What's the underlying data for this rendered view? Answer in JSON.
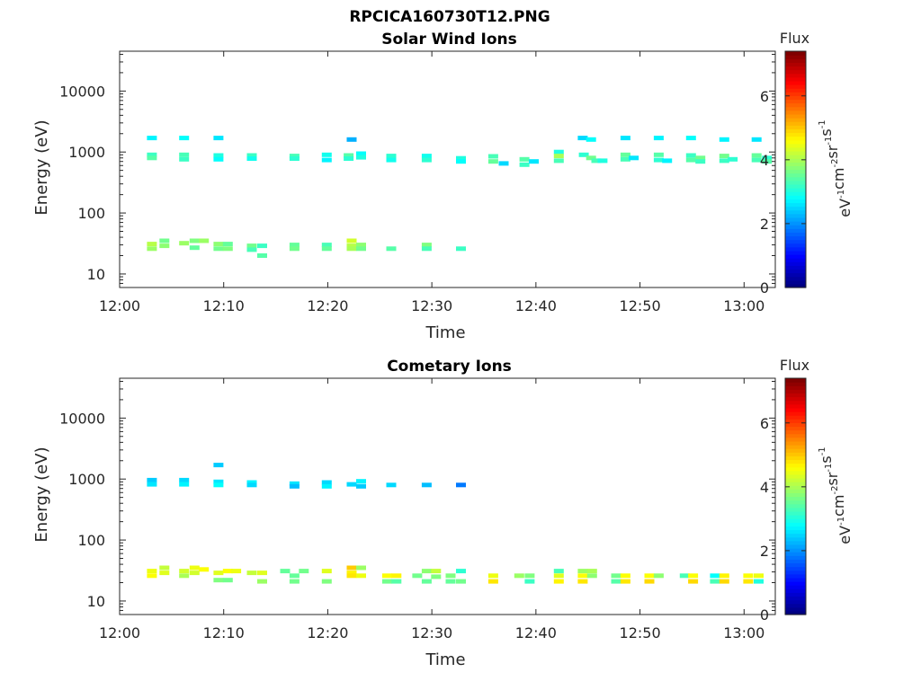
{
  "figure_title": "RPCICA160730T12.PNG",
  "chart_data": [
    {
      "type": "heatmap",
      "title": "Solar Wind Ions",
      "xlabel": "Time",
      "ylabel": "Energy (eV)",
      "x_ticks": [
        "12:00",
        "12:10",
        "12:20",
        "12:30",
        "12:40",
        "12:50",
        "13:00"
      ],
      "x_range_minutes": [
        0,
        63
      ],
      "y_scale": "log",
      "y_ticks": [
        "10",
        "100",
        "1000",
        "10000"
      ],
      "y_range": [
        6,
        45000
      ],
      "colorbar": {
        "title": "Flux",
        "unit": "eV-1cm-2sr-1s-1",
        "ticks": [
          "0",
          "2",
          "4",
          "6"
        ],
        "range": [
          0,
          7.4
        ],
        "colormap": "jet"
      },
      "pixels": [
        {
          "t": 3.1,
          "e": 1700,
          "v": 2.7
        },
        {
          "t": 6.2,
          "e": 1700,
          "v": 2.8
        },
        {
          "t": 9.5,
          "e": 1700,
          "v": 2.6
        },
        {
          "t": 22.3,
          "e": 1600,
          "v": 2.2
        },
        {
          "t": 3.1,
          "e": 900,
          "v": 3.2
        },
        {
          "t": 3.1,
          "e": 800,
          "v": 3.4
        },
        {
          "t": 6.2,
          "e": 900,
          "v": 3.3
        },
        {
          "t": 6.2,
          "e": 760,
          "v": 3.2
        },
        {
          "t": 9.5,
          "e": 880,
          "v": 3.0
        },
        {
          "t": 9.5,
          "e": 760,
          "v": 2.8
        },
        {
          "t": 12.7,
          "e": 880,
          "v": 3.2
        },
        {
          "t": 12.7,
          "e": 780,
          "v": 2.9
        },
        {
          "t": 16.8,
          "e": 860,
          "v": 3.3
        },
        {
          "t": 16.8,
          "e": 780,
          "v": 3.1
        },
        {
          "t": 19.9,
          "e": 900,
          "v": 2.9
        },
        {
          "t": 19.9,
          "e": 740,
          "v": 2.7
        },
        {
          "t": 22.0,
          "e": 880,
          "v": 3.4
        },
        {
          "t": 22.0,
          "e": 780,
          "v": 3.1
        },
        {
          "t": 23.2,
          "e": 940,
          "v": 2.8
        },
        {
          "t": 23.2,
          "e": 820,
          "v": 3.0
        },
        {
          "t": 26.1,
          "e": 860,
          "v": 3.1
        },
        {
          "t": 26.1,
          "e": 740,
          "v": 2.9
        },
        {
          "t": 29.5,
          "e": 860,
          "v": 2.9
        },
        {
          "t": 29.5,
          "e": 740,
          "v": 3.1
        },
        {
          "t": 32.8,
          "e": 790,
          "v": 3.0
        },
        {
          "t": 32.8,
          "e": 700,
          "v": 2.8
        },
        {
          "t": 35.9,
          "e": 850,
          "v": 3.3
        },
        {
          "t": 35.9,
          "e": 700,
          "v": 3.5
        },
        {
          "t": 36.9,
          "e": 650,
          "v": 2.5
        },
        {
          "t": 38.9,
          "e": 760,
          "v": 3.4
        },
        {
          "t": 38.9,
          "e": 620,
          "v": 3.2
        },
        {
          "t": 39.8,
          "e": 700,
          "v": 2.6
        },
        {
          "t": 42.2,
          "e": 1000,
          "v": 3.0
        },
        {
          "t": 42.2,
          "e": 860,
          "v": 4.0
        },
        {
          "t": 42.2,
          "e": 720,
          "v": 3.3
        },
        {
          "t": 44.5,
          "e": 1700,
          "v": 2.5
        },
        {
          "t": 45.3,
          "e": 1600,
          "v": 2.8
        },
        {
          "t": 44.6,
          "e": 900,
          "v": 3.1
        },
        {
          "t": 45.3,
          "e": 800,
          "v": 3.6
        },
        {
          "t": 45.8,
          "e": 720,
          "v": 3.3
        },
        {
          "t": 46.4,
          "e": 720,
          "v": 3.0
        },
        {
          "t": 48.6,
          "e": 1700,
          "v": 2.6
        },
        {
          "t": 48.6,
          "e": 900,
          "v": 3.5
        },
        {
          "t": 48.6,
          "e": 760,
          "v": 3.3
        },
        {
          "t": 49.4,
          "e": 800,
          "v": 2.6
        },
        {
          "t": 51.8,
          "e": 1700,
          "v": 2.7
        },
        {
          "t": 51.8,
          "e": 900,
          "v": 3.4
        },
        {
          "t": 51.8,
          "e": 740,
          "v": 3.1
        },
        {
          "t": 52.6,
          "e": 720,
          "v": 2.7
        },
        {
          "t": 54.9,
          "e": 1700,
          "v": 2.8
        },
        {
          "t": 54.9,
          "e": 880,
          "v": 3.2
        },
        {
          "t": 54.9,
          "e": 740,
          "v": 3.4
        },
        {
          "t": 55.8,
          "e": 800,
          "v": 3.6
        },
        {
          "t": 55.8,
          "e": 700,
          "v": 3.2
        },
        {
          "t": 58.1,
          "e": 1600,
          "v": 2.7
        },
        {
          "t": 58.1,
          "e": 860,
          "v": 3.6
        },
        {
          "t": 58.1,
          "e": 720,
          "v": 3.2
        },
        {
          "t": 58.9,
          "e": 760,
          "v": 3.1
        },
        {
          "t": 61.2,
          "e": 1600,
          "v": 2.6
        },
        {
          "t": 61.2,
          "e": 880,
          "v": 3.5
        },
        {
          "t": 61.2,
          "e": 740,
          "v": 3.3
        },
        {
          "t": 62.2,
          "e": 800,
          "v": 3.1
        },
        {
          "t": 62.2,
          "e": 700,
          "v": 3.4
        },
        {
          "t": 3.1,
          "e": 31,
          "v": 4.1
        },
        {
          "t": 3.1,
          "e": 26,
          "v": 3.9
        },
        {
          "t": 4.3,
          "e": 35,
          "v": 3.6
        },
        {
          "t": 4.3,
          "e": 29,
          "v": 3.8
        },
        {
          "t": 6.2,
          "e": 32,
          "v": 3.9
        },
        {
          "t": 7.2,
          "e": 35,
          "v": 3.7
        },
        {
          "t": 7.2,
          "e": 27,
          "v": 3.5
        },
        {
          "t": 8.1,
          "e": 35,
          "v": 3.9
        },
        {
          "t": 9.5,
          "e": 31,
          "v": 3.8
        },
        {
          "t": 9.5,
          "e": 26,
          "v": 3.6
        },
        {
          "t": 10.4,
          "e": 31,
          "v": 3.5
        },
        {
          "t": 10.4,
          "e": 26,
          "v": 3.7
        },
        {
          "t": 12.7,
          "e": 29,
          "v": 3.6
        },
        {
          "t": 12.7,
          "e": 25,
          "v": 3.3
        },
        {
          "t": 13.7,
          "e": 29,
          "v": 3.2
        },
        {
          "t": 13.7,
          "e": 20,
          "v": 3.4
        },
        {
          "t": 16.8,
          "e": 30,
          "v": 3.5
        },
        {
          "t": 16.8,
          "e": 26,
          "v": 3.6
        },
        {
          "t": 19.9,
          "e": 30,
          "v": 3.3
        },
        {
          "t": 19.9,
          "e": 26,
          "v": 3.5
        },
        {
          "t": 22.3,
          "e": 35,
          "v": 4.3
        },
        {
          "t": 22.3,
          "e": 29,
          "v": 4.1
        },
        {
          "t": 22.3,
          "e": 26,
          "v": 4.0
        },
        {
          "t": 23.2,
          "e": 30,
          "v": 3.8
        },
        {
          "t": 23.2,
          "e": 26,
          "v": 3.6
        },
        {
          "t": 26.1,
          "e": 26,
          "v": 3.4
        },
        {
          "t": 29.5,
          "e": 30,
          "v": 3.7
        },
        {
          "t": 29.5,
          "e": 26,
          "v": 3.3
        },
        {
          "t": 32.8,
          "e": 26,
          "v": 3.2
        }
      ]
    },
    {
      "type": "heatmap",
      "title": "Cometary Ions",
      "xlabel": "Time",
      "ylabel": "Energy (eV)",
      "x_ticks": [
        "12:00",
        "12:10",
        "12:20",
        "12:30",
        "12:40",
        "12:50",
        "13:00"
      ],
      "x_range_minutes": [
        0,
        63
      ],
      "y_scale": "log",
      "y_ticks": [
        "10",
        "100",
        "1000",
        "10000"
      ],
      "y_range": [
        6,
        45000
      ],
      "colorbar": {
        "title": "Flux",
        "unit": "eV-1cm-2sr-1s-1",
        "ticks": [
          "0",
          "2",
          "4",
          "6"
        ],
        "range": [
          0,
          7.4
        ],
        "colormap": "jet"
      },
      "pixels": [
        {
          "t": 9.5,
          "e": 1700,
          "v": 2.4
        },
        {
          "t": 3.1,
          "e": 960,
          "v": 2.4
        },
        {
          "t": 3.1,
          "e": 820,
          "v": 2.6
        },
        {
          "t": 6.2,
          "e": 960,
          "v": 2.5
        },
        {
          "t": 6.2,
          "e": 820,
          "v": 2.7
        },
        {
          "t": 9.5,
          "e": 900,
          "v": 2.6
        },
        {
          "t": 9.5,
          "e": 800,
          "v": 2.8
        },
        {
          "t": 12.7,
          "e": 880,
          "v": 2.7
        },
        {
          "t": 12.7,
          "e": 800,
          "v": 2.5
        },
        {
          "t": 16.8,
          "e": 840,
          "v": 2.6
        },
        {
          "t": 16.8,
          "e": 760,
          "v": 2.3
        },
        {
          "t": 19.9,
          "e": 880,
          "v": 2.5
        },
        {
          "t": 19.9,
          "e": 760,
          "v": 2.7
        },
        {
          "t": 22.3,
          "e": 820,
          "v": 2.5
        },
        {
          "t": 23.2,
          "e": 920,
          "v": 2.7
        },
        {
          "t": 23.2,
          "e": 760,
          "v": 2.4
        },
        {
          "t": 26.1,
          "e": 800,
          "v": 2.5
        },
        {
          "t": 29.5,
          "e": 800,
          "v": 2.3
        },
        {
          "t": 32.8,
          "e": 800,
          "v": 1.8
        },
        {
          "t": 3.1,
          "e": 31,
          "v": 4.5
        },
        {
          "t": 3.1,
          "e": 26,
          "v": 4.6
        },
        {
          "t": 4.3,
          "e": 35,
          "v": 4.2
        },
        {
          "t": 4.3,
          "e": 29,
          "v": 4.4
        },
        {
          "t": 6.2,
          "e": 31,
          "v": 4.3
        },
        {
          "t": 6.2,
          "e": 26,
          "v": 4.0
        },
        {
          "t": 7.2,
          "e": 35,
          "v": 4.5
        },
        {
          "t": 7.2,
          "e": 29,
          "v": 4.3
        },
        {
          "t": 8.1,
          "e": 33,
          "v": 4.6
        },
        {
          "t": 9.5,
          "e": 29,
          "v": 4.4
        },
        {
          "t": 9.5,
          "e": 22,
          "v": 3.7
        },
        {
          "t": 10.4,
          "e": 31,
          "v": 4.6
        },
        {
          "t": 10.4,
          "e": 22,
          "v": 3.6
        },
        {
          "t": 11.2,
          "e": 31,
          "v": 4.5
        },
        {
          "t": 12.7,
          "e": 29,
          "v": 4.2
        },
        {
          "t": 13.7,
          "e": 29,
          "v": 4.4
        },
        {
          "t": 13.7,
          "e": 21,
          "v": 3.9
        },
        {
          "t": 15.9,
          "e": 31,
          "v": 3.5
        },
        {
          "t": 16.8,
          "e": 26,
          "v": 3.5
        },
        {
          "t": 16.8,
          "e": 21,
          "v": 3.6
        },
        {
          "t": 17.7,
          "e": 31,
          "v": 3.6
        },
        {
          "t": 19.9,
          "e": 31,
          "v": 4.4
        },
        {
          "t": 19.9,
          "e": 21,
          "v": 3.7
        },
        {
          "t": 22.3,
          "e": 35,
          "v": 5.0
        },
        {
          "t": 22.3,
          "e": 29,
          "v": 4.7
        },
        {
          "t": 22.3,
          "e": 26,
          "v": 4.8
        },
        {
          "t": 23.2,
          "e": 35,
          "v": 3.9
        },
        {
          "t": 23.2,
          "e": 26,
          "v": 4.5
        },
        {
          "t": 25.7,
          "e": 26,
          "v": 4.6
        },
        {
          "t": 25.7,
          "e": 21,
          "v": 3.6
        },
        {
          "t": 26.6,
          "e": 26,
          "v": 4.7
        },
        {
          "t": 26.6,
          "e": 21,
          "v": 3.4
        },
        {
          "t": 28.6,
          "e": 26,
          "v": 3.6
        },
        {
          "t": 29.5,
          "e": 31,
          "v": 3.8
        },
        {
          "t": 29.5,
          "e": 21,
          "v": 3.5
        },
        {
          "t": 30.4,
          "e": 31,
          "v": 4.2
        },
        {
          "t": 30.4,
          "e": 25,
          "v": 3.7
        },
        {
          "t": 31.8,
          "e": 26,
          "v": 3.7
        },
        {
          "t": 31.8,
          "e": 21,
          "v": 3.5
        },
        {
          "t": 32.8,
          "e": 31,
          "v": 3.1
        },
        {
          "t": 32.8,
          "e": 21,
          "v": 3.6
        },
        {
          "t": 35.9,
          "e": 26,
          "v": 4.5
        },
        {
          "t": 35.9,
          "e": 21,
          "v": 4.8
        },
        {
          "t": 38.4,
          "e": 26,
          "v": 3.9
        },
        {
          "t": 39.4,
          "e": 26,
          "v": 3.7
        },
        {
          "t": 39.4,
          "e": 21,
          "v": 3.2
        },
        {
          "t": 42.2,
          "e": 31,
          "v": 3.3
        },
        {
          "t": 42.2,
          "e": 26,
          "v": 4.4
        },
        {
          "t": 42.2,
          "e": 21,
          "v": 4.7
        },
        {
          "t": 44.5,
          "e": 31,
          "v": 3.9
        },
        {
          "t": 44.5,
          "e": 26,
          "v": 4.6
        },
        {
          "t": 44.5,
          "e": 21,
          "v": 4.8
        },
        {
          "t": 45.4,
          "e": 31,
          "v": 4.0
        },
        {
          "t": 45.4,
          "e": 26,
          "v": 3.8
        },
        {
          "t": 47.7,
          "e": 26,
          "v": 3.6
        },
        {
          "t": 47.7,
          "e": 21,
          "v": 3.4
        },
        {
          "t": 48.6,
          "e": 26,
          "v": 4.6
        },
        {
          "t": 48.6,
          "e": 21,
          "v": 4.8
        },
        {
          "t": 50.9,
          "e": 26,
          "v": 4.6
        },
        {
          "t": 50.9,
          "e": 21,
          "v": 4.9
        },
        {
          "t": 51.8,
          "e": 26,
          "v": 3.8
        },
        {
          "t": 54.3,
          "e": 26,
          "v": 3.3
        },
        {
          "t": 55.1,
          "e": 26,
          "v": 4.6
        },
        {
          "t": 55.1,
          "e": 21,
          "v": 4.9
        },
        {
          "t": 57.2,
          "e": 26,
          "v": 2.8
        },
        {
          "t": 57.2,
          "e": 21,
          "v": 3.3
        },
        {
          "t": 58.1,
          "e": 26,
          "v": 4.7
        },
        {
          "t": 58.1,
          "e": 21,
          "v": 4.9
        },
        {
          "t": 60.4,
          "e": 26,
          "v": 4.6
        },
        {
          "t": 60.4,
          "e": 21,
          "v": 4.8
        },
        {
          "t": 61.4,
          "e": 26,
          "v": 4.5
        },
        {
          "t": 61.4,
          "e": 21,
          "v": 3.0
        }
      ]
    }
  ]
}
